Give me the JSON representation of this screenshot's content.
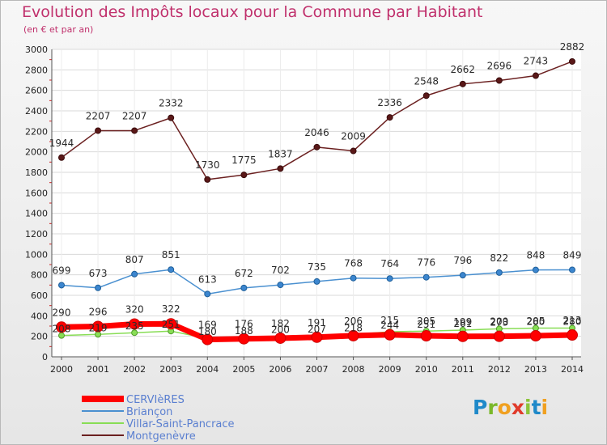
{
  "chart_data": {
    "type": "line",
    "title": "Evolution des Impôts locaux pour la Commune par Habitant",
    "subtitle": "(en € et par an)",
    "x": [
      "2000",
      "2001",
      "2002",
      "2003",
      "2004",
      "2005",
      "2006",
      "2007",
      "2008",
      "2009",
      "2010",
      "2011",
      "2012",
      "2013",
      "2014"
    ],
    "ylim": [
      0,
      3000
    ],
    "yticks": [
      "0",
      "200",
      "400",
      "600",
      "800",
      "1000",
      "1200",
      "1400",
      "1600",
      "1800",
      "2000",
      "2200",
      "2400",
      "2600",
      "2800",
      "3000"
    ],
    "grid": true,
    "legend_position": "bottom-left",
    "series": [
      {
        "name": "CERVIèRES",
        "color": "#ff0000",
        "values": [
          290,
          296,
          320,
          322,
          169,
          176,
          182,
          191,
          206,
          215,
          205,
          199,
          200,
          205,
          213
        ]
      },
      {
        "name": "Briançon",
        "color": "#4a90d0",
        "values": [
          699,
          673,
          807,
          851,
          613,
          672,
          702,
          735,
          768,
          764,
          776,
          796,
          822,
          848,
          849
        ]
      },
      {
        "name": "Villar-Saint-Pancrace",
        "color": "#88dd55",
        "values": [
          208,
          219,
          235,
          251,
          180,
          188,
          200,
          207,
          218,
          244,
          251,
          261,
          273,
          280,
          280
        ]
      },
      {
        "name": "Montgenèvre",
        "color": "#6b2020",
        "values": [
          1944,
          2207,
          2207,
          2332,
          1730,
          1775,
          1837,
          2046,
          2009,
          2336,
          2548,
          2662,
          2696,
          2743,
          2882
        ]
      }
    ]
  },
  "logo": {
    "text": "Proxiti",
    "letters": [
      "P",
      "r",
      "o",
      "x",
      "i",
      "t",
      "i"
    ]
  }
}
